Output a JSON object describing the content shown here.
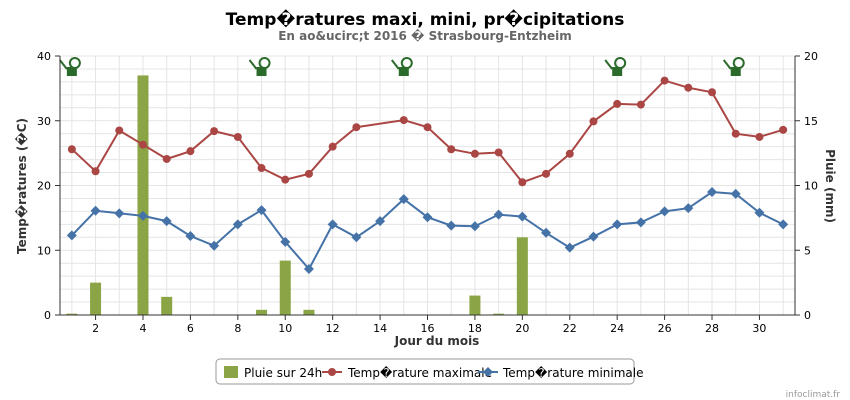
{
  "chart_data": {
    "type": "bar+line",
    "title": "Temp�ratures maxi, mini, pr�cipitations",
    "subtitle": "En ao&ucirc;t 2016 � Strasbourg-Entzheim",
    "xlabel": "Jour du mois",
    "ylabel_left": "Temp�ratures (�C)",
    "ylabel_right": "Pluie (mm)",
    "xlim": [
      0.5,
      31.5
    ],
    "ylim_left": [
      0,
      40
    ],
    "ylim_right": [
      0,
      20
    ],
    "x_ticks": [
      "2",
      "4",
      "6",
      "8",
      "10",
      "12",
      "14",
      "16",
      "18",
      "20",
      "22",
      "24",
      "26",
      "28",
      "30"
    ],
    "y_ticks_left": [
      "0",
      "10",
      "20",
      "30",
      "40"
    ],
    "y_ticks_right": [
      "0",
      "5",
      "10",
      "15",
      "20"
    ],
    "grid": true,
    "legend_position": "bottom",
    "x": [
      1,
      2,
      3,
      4,
      5,
      6,
      7,
      8,
      9,
      10,
      11,
      12,
      13,
      14,
      15,
      16,
      17,
      18,
      19,
      20,
      21,
      22,
      23,
      24,
      25,
      26,
      27,
      28,
      29,
      30,
      31
    ],
    "series": [
      {
        "name": "Pluie sur 24h",
        "axis": "right",
        "kind": "bar",
        "color": "#8BA446",
        "values": [
          0.1,
          2.5,
          0,
          18.5,
          1.4,
          0,
          0,
          0,
          0.4,
          4.2,
          0.4,
          0,
          0,
          0,
          0,
          0,
          0,
          1.5,
          0.1,
          6.0,
          0,
          0,
          0,
          0,
          0,
          0,
          0,
          0,
          0,
          0,
          0
        ]
      },
      {
        "name": "Temp�rature maximale",
        "axis": "left",
        "kind": "line",
        "marker": "circle",
        "color": "#AA4643",
        "values": [
          25.6,
          22.2,
          28.5,
          26.3,
          24.1,
          25.3,
          28.4,
          27.5,
          22.7,
          20.9,
          21.8,
          26.0,
          29.0,
          null,
          30.1,
          29.0,
          25.6,
          24.9,
          25.1,
          20.5,
          21.8,
          24.9,
          29.9,
          32.6,
          32.5,
          36.2,
          35.1,
          34.4,
          28.0,
          27.5,
          28.6
        ]
      },
      {
        "name": "Temp�rature minimale",
        "axis": "left",
        "kind": "line",
        "marker": "diamond",
        "color": "#4572A7",
        "values": [
          12.3,
          16.1,
          15.7,
          15.3,
          14.5,
          12.2,
          10.7,
          14.0,
          16.2,
          11.3,
          7.1,
          14.0,
          12.0,
          14.5,
          17.9,
          15.1,
          13.8,
          13.7,
          15.5,
          15.2,
          12.7,
          10.4,
          12.1,
          14.0,
          14.3,
          16.0,
          16.5,
          19.0,
          18.7,
          15.8,
          14.0
        ]
      }
    ],
    "icon_days": [
      1,
      9,
      15,
      24,
      29
    ]
  },
  "colors": {
    "grid": "#E4E4E4",
    "icon": "#2A6A2A",
    "axis": "#333333"
  },
  "icons": {
    "marker": "watering-can-icon"
  },
  "credit": "infoclimat.fr"
}
